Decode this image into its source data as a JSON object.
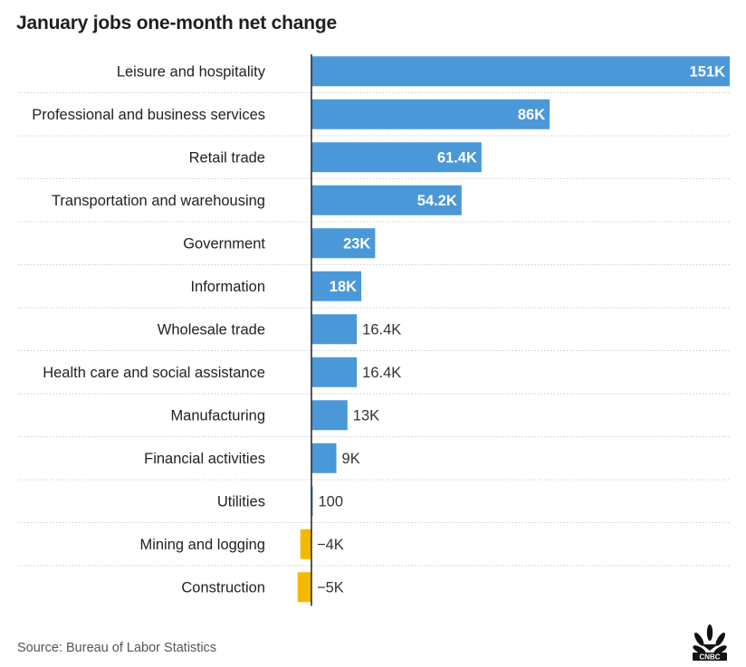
{
  "colors": {
    "positive": "#4a98d8",
    "negative": "#f5b800",
    "grid": "#cfcfcf",
    "axis": "#222222"
  },
  "chart_data": {
    "type": "bar",
    "orientation": "horizontal",
    "title": "January jobs one-month net change",
    "source": "Source: Bureau of Labor Statistics",
    "brand": "CNBC",
    "xlim": [
      -5000,
      151000
    ],
    "grid": "horizontal dotted separators",
    "categories": [
      "Leisure and hospitality",
      "Professional and business services",
      "Retail trade",
      "Transportation and warehousing",
      "Government",
      "Information",
      "Wholesale trade",
      "Health care and social assistance",
      "Manufacturing",
      "Financial activities",
      "Utilities",
      "Mining and logging",
      "Construction"
    ],
    "values": [
      151000,
      86000,
      61400,
      54200,
      23000,
      18000,
      16400,
      16400,
      13000,
      9000,
      100,
      -4000,
      -5000
    ],
    "labels": [
      "151K",
      "86K",
      "61.4K",
      "54.2K",
      "23K",
      "18K",
      "16.4K",
      "16.4K",
      "13K",
      "9K",
      "100",
      "−4K",
      "−5K"
    ]
  }
}
